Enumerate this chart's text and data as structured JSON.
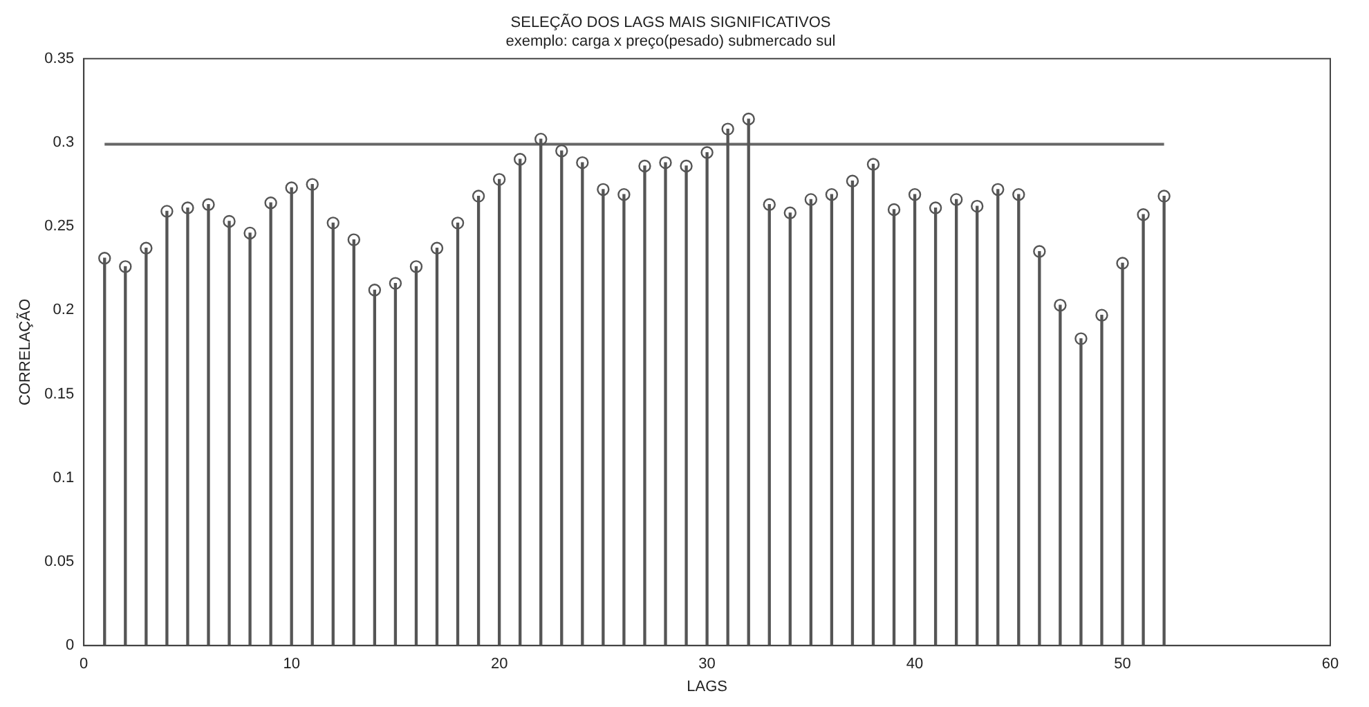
{
  "chart_data": {
    "type": "lollipop",
    "title": "SELEÇÃO DOS LAGS MAIS SIGNIFICATIVOS",
    "subtitle": "exemplo: carga x preço(pesado) submercado sul",
    "xlabel": "LAGS",
    "ylabel": "CORRELAÇÃO",
    "x": [
      1,
      2,
      3,
      4,
      5,
      6,
      7,
      8,
      9,
      10,
      11,
      12,
      13,
      14,
      15,
      16,
      17,
      18,
      19,
      20,
      21,
      22,
      23,
      24,
      25,
      26,
      27,
      28,
      29,
      30,
      31,
      32,
      33,
      34,
      35,
      36,
      37,
      38,
      39,
      40,
      41,
      42,
      43,
      44,
      45,
      46,
      47,
      48,
      49,
      50,
      51,
      52
    ],
    "xlim": [
      0,
      60
    ],
    "xticks": [
      0,
      10,
      20,
      30,
      40,
      50,
      60
    ],
    "ylim": [
      0,
      0.35
    ],
    "yticks": [
      0,
      0.05,
      0.1,
      0.15,
      0.2,
      0.25,
      0.3,
      0.35
    ],
    "marker": "circle",
    "series": [
      {
        "color": "#555555",
        "values": [
          0.231,
          0.226,
          0.237,
          0.259,
          0.261,
          0.263,
          0.253,
          0.246,
          0.264,
          0.273,
          0.275,
          0.252,
          0.242,
          0.212,
          0.216,
          0.226,
          0.237,
          0.252,
          0.268,
          0.278,
          0.29,
          0.302,
          0.295,
          0.288,
          0.272,
          0.269,
          0.286,
          0.288,
          0.286,
          0.294,
          0.308,
          0.314,
          0.263,
          0.258,
          0.266,
          0.269,
          0.277,
          0.287,
          0.26,
          0.269,
          0.261,
          0.266,
          0.262,
          0.272,
          0.269,
          0.235,
          0.203,
          0.183,
          0.197,
          0.228,
          0.257,
          0.268
        ]
      },
      {
        "type": "line",
        "x": [
          1,
          52
        ],
        "values": [
          0.299,
          0.299
        ],
        "color": "#666666",
        "marker": "none"
      }
    ]
  }
}
